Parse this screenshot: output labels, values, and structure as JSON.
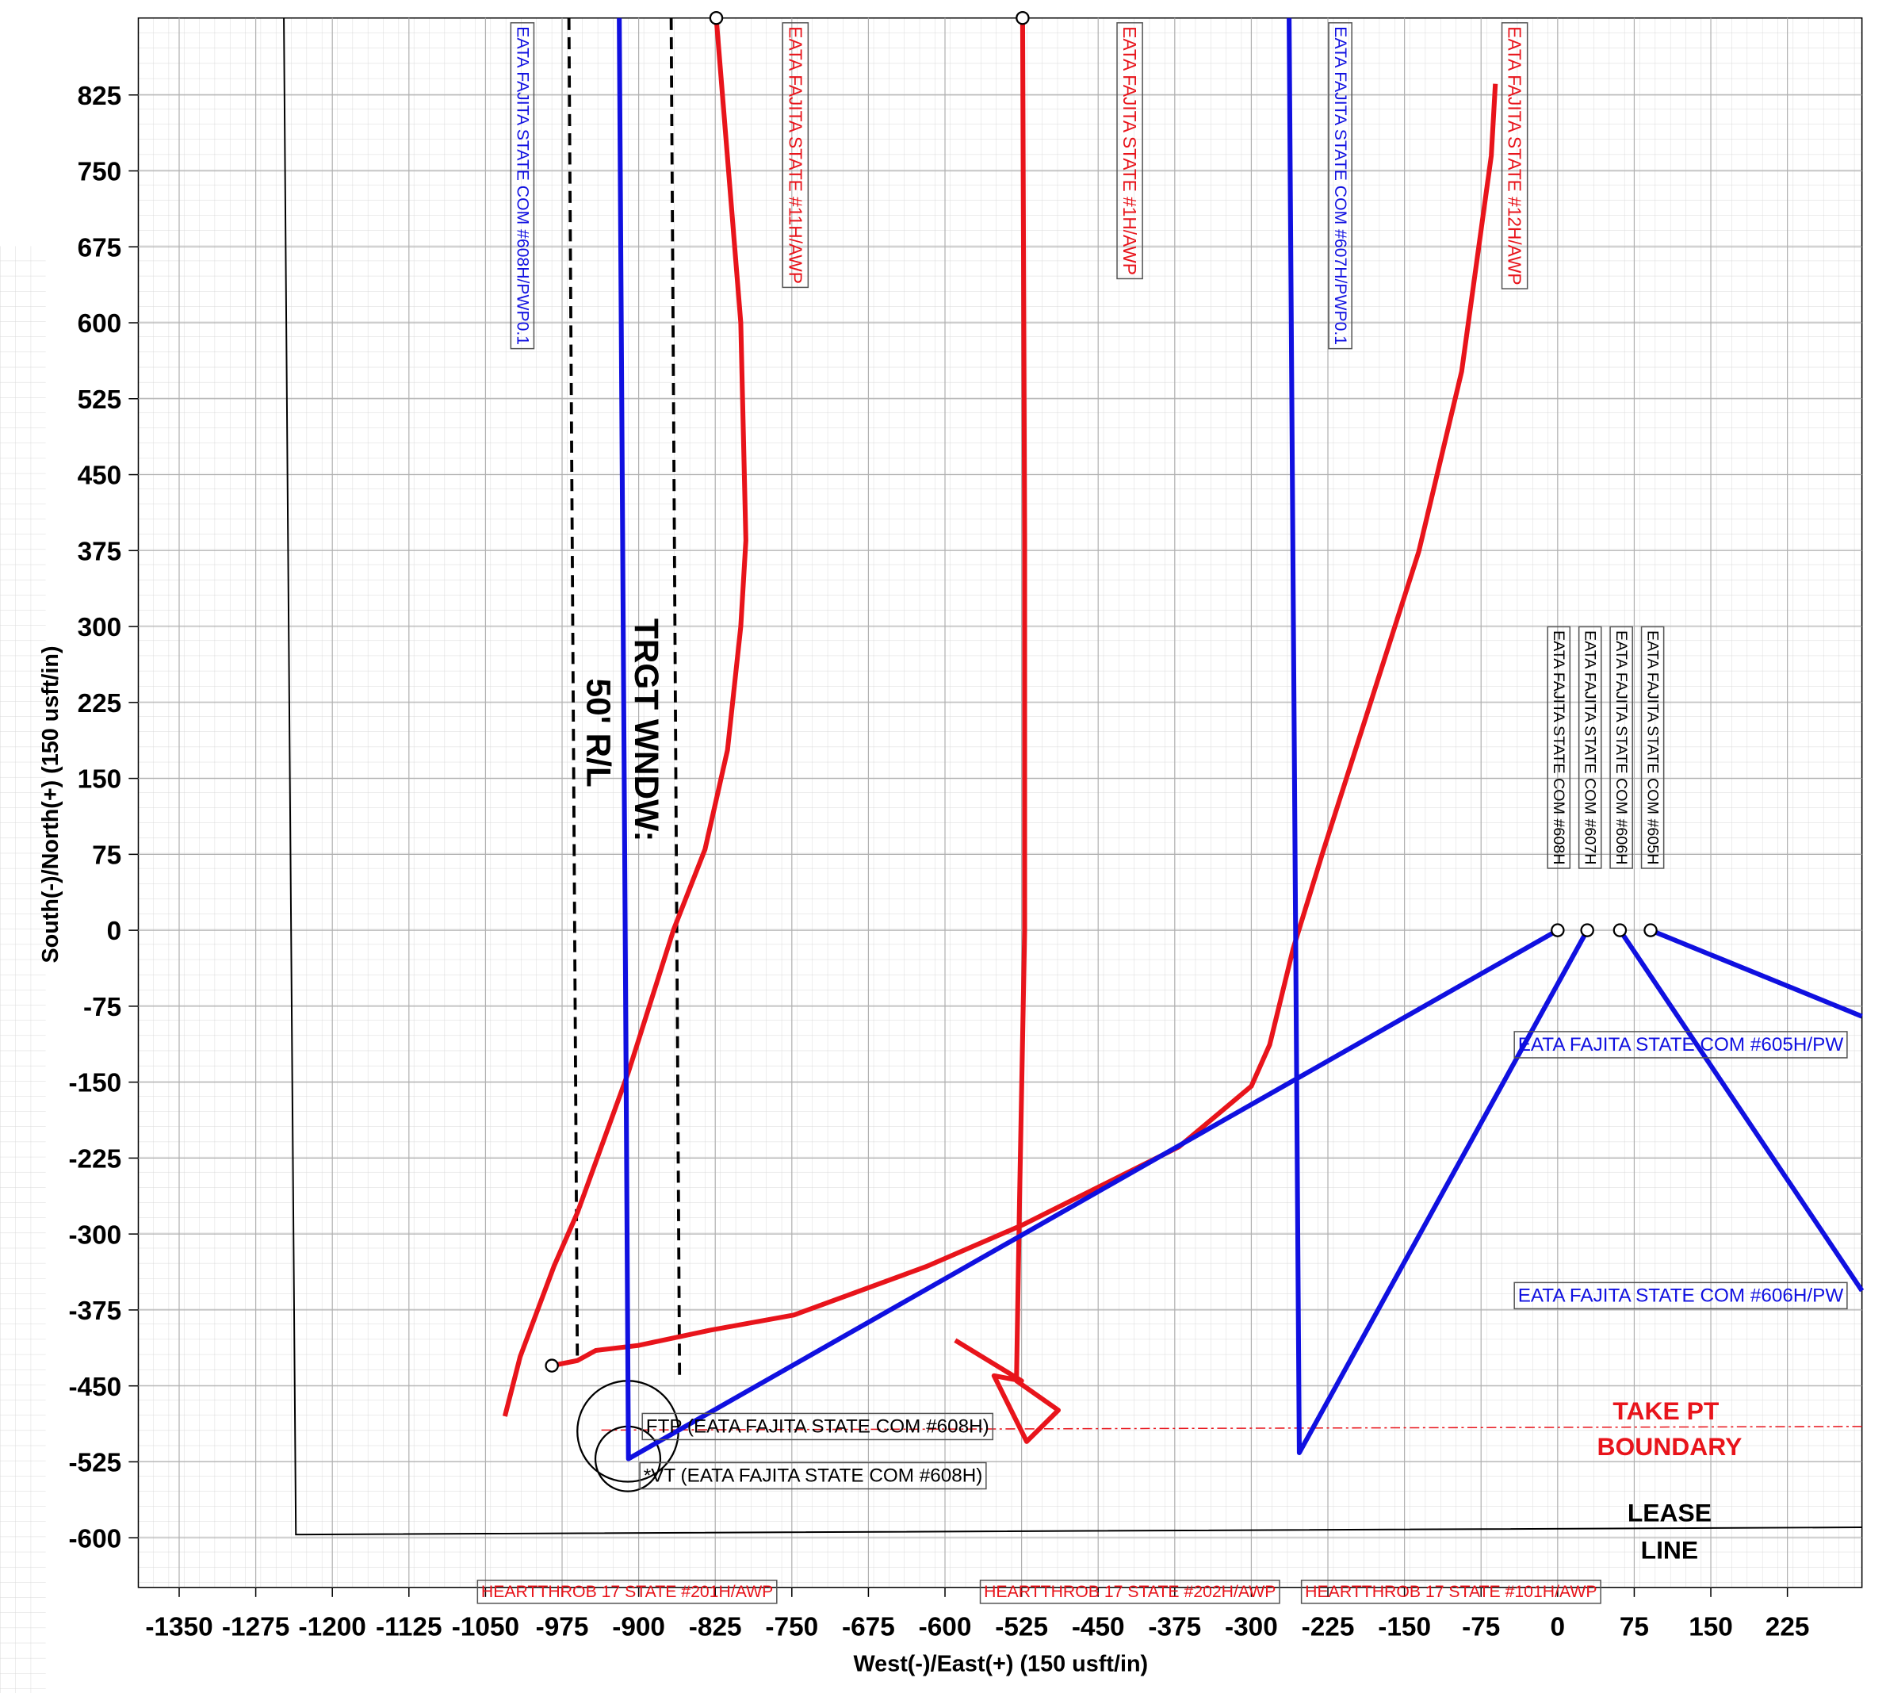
{
  "chart_data": {
    "type": "line",
    "xlabel": "West(-)/East(+) (150 usft/in)",
    "ylabel": "South(-)/North(+) (150 usft/in)",
    "xlim": [
      -1390,
      298
    ],
    "ylim": [
      -649,
      901
    ],
    "xticks": [
      -1350,
      -1275,
      -1200,
      -1125,
      -1050,
      -975,
      -900,
      -825,
      -750,
      -675,
      -600,
      -525,
      -450,
      -375,
      -300,
      -225,
      -150,
      -75,
      0,
      75,
      150,
      225
    ],
    "yticks": [
      825,
      750,
      675,
      600,
      525,
      450,
      375,
      300,
      225,
      150,
      75,
      0,
      -75,
      -150,
      -225,
      -300,
      -375,
      -450,
      -525,
      -600
    ],
    "grid": true,
    "series": [
      {
        "color": "#e8141b",
        "x": [
          -824,
          -800,
          -795,
          -800,
          -813,
          -835,
          -866,
          -910,
          -960,
          -983,
          -1016,
          -1031
        ],
        "y": [
          901,
          600,
          385,
          300,
          178,
          80,
          0,
          -140,
          -279,
          -332,
          -421,
          -480
        ]
      },
      {
        "color": "#e8141b",
        "x": [
          -985,
          -960,
          -942,
          -900,
          -830,
          -748,
          -618,
          -524,
          -371,
          -300,
          -282,
          -259,
          -230,
          -136,
          -94,
          -65,
          -61
        ],
        "y": [
          -430,
          -425,
          -415,
          -410,
          -395,
          -380,
          -332,
          -291,
          -214,
          -154,
          -113,
          -18,
          77,
          374,
          552,
          765,
          836
        ]
      },
      {
        "color": "#e8141b",
        "x": [
          -524,
          -522,
          -522,
          -527,
          -530,
          -489,
          -520,
          -552,
          -525,
          -590
        ],
        "y": [
          901,
          385,
          0,
          -267,
          -445,
          -474,
          -505,
          -440,
          -445,
          -405
        ]
      },
      {
        "color": "#1010e0",
        "x": [
          0,
          -910,
          -913,
          -919
        ],
        "y": [
          0,
          -522,
          -30,
          901
        ]
      },
      {
        "color": "#1010e0",
        "x": [
          29,
          -253,
          -263
        ],
        "y": [
          0,
          -516,
          901
        ]
      },
      {
        "color": "#1010e0",
        "x": [
          61,
          298
        ],
        "y": [
          0,
          -356
        ]
      },
      {
        "color": "#1010e0",
        "x": [
          91,
          298
        ],
        "y": [
          0,
          -85
        ]
      }
    ],
    "annotations": [
      "EATA FAJITA STATE COM #608H/PWP0.1",
      "EATA FAJITA STATE #11H/AWP",
      "EATA FAJITA STATE #1H/AWP",
      "EATA FAJITA STATE COM #607H/PWP0.1",
      "EATA FAJITA STATE #12H/AWP",
      "EATA FAJITA STATE COM #608H",
      "EATA FAJITA STATE COM #607H",
      "EATA FAJITA STATE COM #606H",
      "EATA FAJITA STATE COM #605H",
      "EATA FAJITA STATE COM #605H/PW",
      "EATA FAJITA STATE COM #606H/PW",
      "TRGT WNDW:",
      "50' R/L",
      "FTP (EATA FAJITA STATE COM #608H)",
      "*VT (EATA FAJITA STATE COM #608H)",
      "TAKE PT",
      "BOUNDARY",
      "LEASE",
      "LINE",
      "HEARTTHROB 17 STATE #201H/AWP",
      "HEARTTHROB 17 STATE #202H/AWP",
      "HEARTTHROB 17 STATE #101H/AWP"
    ]
  }
}
